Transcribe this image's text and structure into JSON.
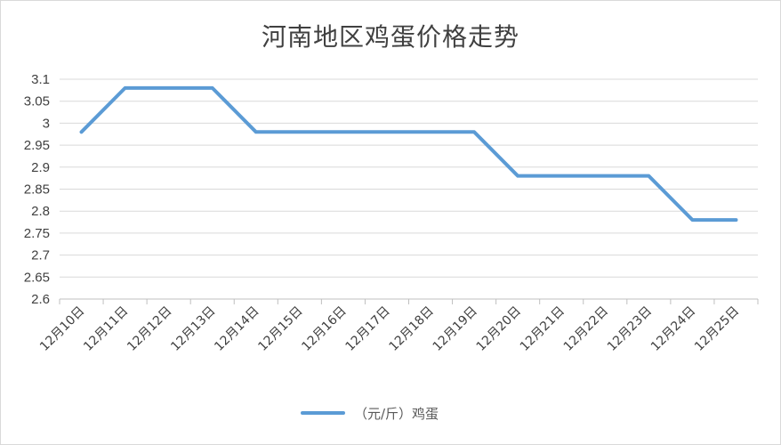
{
  "chart_data": {
    "type": "line",
    "title": "河南地区鸡蛋价格走势",
    "categories": [
      "12月10日",
      "12月11日",
      "12月12日",
      "12月13日",
      "12月14日",
      "12月15日",
      "12月16日",
      "12月17日",
      "12月18日",
      "12月19日",
      "12月20日",
      "12月21日",
      "12月22日",
      "12月23日",
      "12月24日",
      "12月25日"
    ],
    "series": [
      {
        "name": "（元/斤）鸡蛋",
        "values": [
          2.98,
          3.08,
          3.08,
          3.08,
          2.98,
          2.98,
          2.98,
          2.98,
          2.98,
          2.98,
          2.88,
          2.88,
          2.88,
          2.88,
          2.78,
          2.78
        ]
      }
    ],
    "ylim": [
      2.6,
      3.1
    ],
    "yticks": [
      "2.6",
      "2.65",
      "2.7",
      "2.75",
      "2.8",
      "2.85",
      "2.9",
      "2.95",
      "3",
      "3.05",
      "3.1"
    ],
    "grid": true,
    "legend_position": "bottom",
    "line_color": "#5b9bd5"
  }
}
